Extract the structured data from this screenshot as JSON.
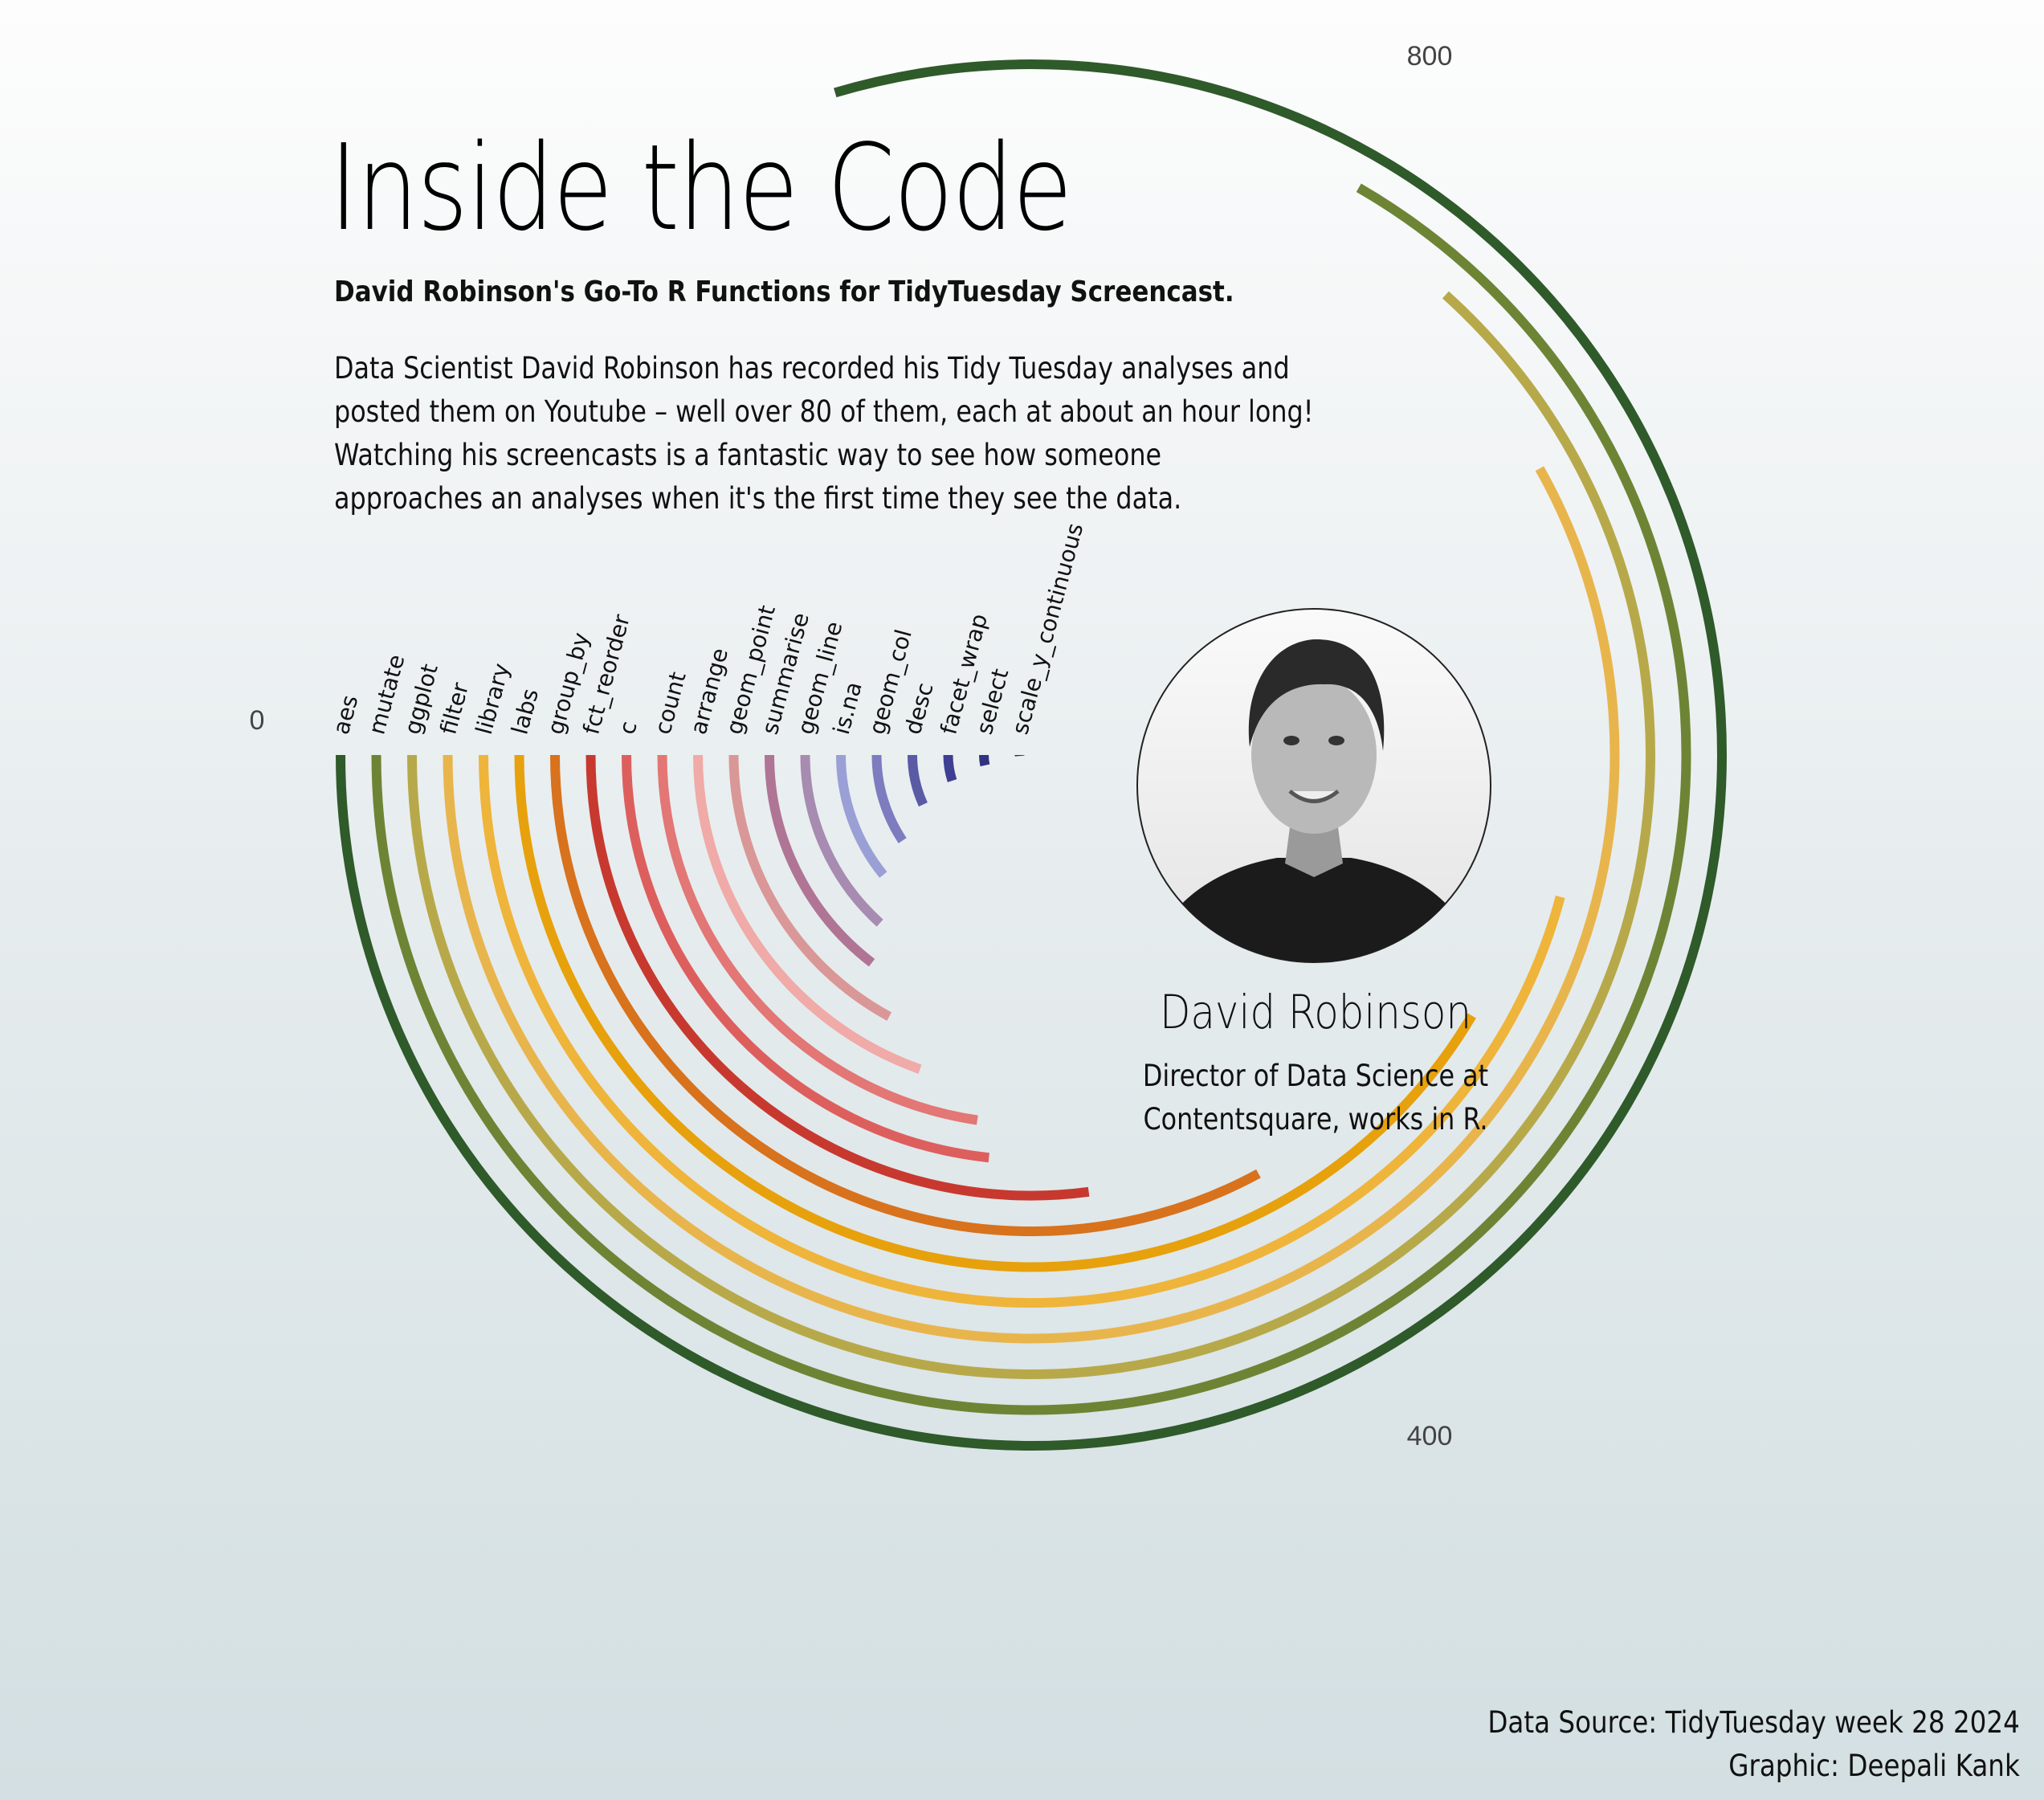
{
  "header": {
    "title": "Inside the Code",
    "subtitle": "David Robinson's Go-To R Functions for TidyTuesday Screencast.",
    "description": [
      "Data Scientist  David Robinson has recorded his Tidy Tuesday analyses and",
      "posted them on Youtube – well over 80 of them, each at about an hour long!",
      "Watching his screencasts is a fantastic way to see how someone",
      "approaches an analyses when it's the first time they see the data."
    ]
  },
  "person": {
    "photo_icon": "portrait-photo-icon",
    "name": "David Robinson",
    "role_lines": [
      "Director of Data Science at",
      "Contentsquare, works in R."
    ]
  },
  "credits": {
    "source": "Data Source:  TidyTuesday week 28 2024",
    "graphic": "Graphic: Deepali Kank"
  },
  "chart_data": {
    "type": "radial-bar",
    "direction": "counter-clockwise from left",
    "axis": {
      "ticks": [
        0,
        400,
        800
      ],
      "max": 1200
    },
    "categories": [
      "aes",
      "mutate",
      "ggplot",
      "filter",
      "library",
      "labs",
      "group_by",
      "fct_reorder",
      "c",
      "count",
      "arrange",
      "geom_point",
      "summarise",
      "geom_line",
      "is.na",
      "geom_col",
      "desc",
      "facet_wrap",
      "select",
      "scale_y_continuous"
    ],
    "values": [
      955,
      800,
      760,
      698,
      550,
      498,
      395,
      325,
      280,
      272,
      235,
      205,
      175,
      160,
      130,
      112,
      82,
      60,
      42,
      15
    ],
    "colors": [
      "#2f5a2a",
      "#6e8435",
      "#b7a94a",
      "#e8b54d",
      "#efb43a",
      "#e7a10c",
      "#d8721c",
      "#c7392f",
      "#dd5f5d",
      "#e27775",
      "#f0aaa8",
      "#da9797",
      "#b07595",
      "#a78bb1",
      "#9a9fd6",
      "#7d7cbf",
      "#5a5aa5",
      "#3e3e92",
      "#2f3380",
      "#242c76"
    ],
    "grid": false,
    "legend": "none"
  }
}
